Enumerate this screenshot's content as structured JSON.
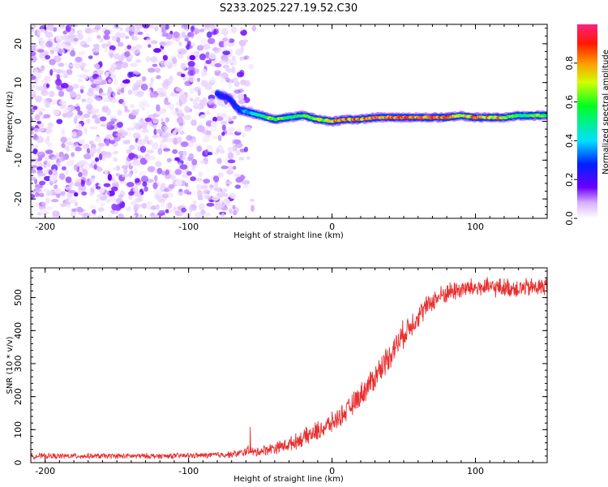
{
  "title": "S233.2025.227.19.52.C30",
  "chart_data": [
    {
      "type": "heatmap",
      "xlabel": "Height of straight line (km)",
      "ylabel": "Frequency (Hz)",
      "xlim": [
        -210,
        150
      ],
      "ylim": [
        -25,
        25
      ],
      "xticks": [
        -200,
        -100,
        0,
        100
      ],
      "yticks": [
        -20,
        -10,
        0,
        10,
        20
      ],
      "colorbar": {
        "label": "Normalized spectral amplitude",
        "range": [
          0,
          1
        ],
        "ticks": [
          "0.0",
          "0.2",
          "0.4",
          "0.6",
          "0.8"
        ]
      },
      "noise_region": {
        "x_from": -210,
        "x_to": -60,
        "max_amplitude": 0.2
      },
      "signal_track": {
        "x": [
          -80,
          -72,
          -65,
          -60,
          -50,
          -40,
          -30,
          -20,
          -10,
          0,
          10,
          20,
          30,
          40,
          50,
          60,
          70,
          80,
          90,
          100,
          110,
          120,
          130,
          140,
          150
        ],
        "freq": [
          7,
          6,
          3,
          2.5,
          1.5,
          0.5,
          1,
          1.5,
          0.5,
          0,
          0.5,
          0.5,
          1,
          1,
          1,
          1,
          1,
          1,
          1.5,
          1,
          1,
          1,
          1.5,
          1.5,
          1.5
        ],
        "amplitude": [
          0.25,
          0.25,
          0.3,
          0.4,
          0.55,
          0.75,
          0.6,
          0.6,
          0.7,
          0.85,
          0.9,
          0.9,
          0.95,
          0.95,
          0.95,
          0.95,
          0.95,
          0.9,
          0.75,
          0.9,
          0.85,
          0.8,
          0.6,
          0.65,
          0.7
        ]
      }
    },
    {
      "type": "line",
      "xlabel": "Height of straight line (km)",
      "ylabel": "SNR (10 * v/v)",
      "xlim": [
        -210,
        150
      ],
      "ylim": [
        0,
        590
      ],
      "xticks": [
        -200,
        -100,
        0,
        100
      ],
      "yticks": [
        0,
        100,
        200,
        300,
        400,
        500
      ],
      "series": [
        {
          "name": "SNR",
          "color": "#e83030",
          "x": [
            -210,
            -180,
            -150,
            -120,
            -90,
            -70,
            -62,
            -58,
            -55,
            -50,
            -40,
            -30,
            -20,
            -10,
            0,
            10,
            20,
            30,
            40,
            50,
            60,
            70,
            80,
            90,
            100,
            110,
            120,
            130,
            140,
            150
          ],
          "y": [
            20,
            20,
            20,
            20,
            22,
            25,
            30,
            40,
            30,
            35,
            45,
            55,
            75,
            95,
            120,
            155,
            205,
            260,
            325,
            390,
            445,
            490,
            515,
            525,
            530,
            530,
            530,
            528,
            530,
            535
          ],
          "noise_amplitude": [
            8,
            8,
            8,
            8,
            8,
            10,
            12,
            15,
            15,
            15,
            18,
            20,
            25,
            30,
            30,
            30,
            35,
            40,
            40,
            40,
            35,
            30,
            30,
            30,
            28,
            28,
            28,
            28,
            28,
            28
          ],
          "spike": {
            "x": -57,
            "y": 108
          }
        }
      ]
    }
  ]
}
